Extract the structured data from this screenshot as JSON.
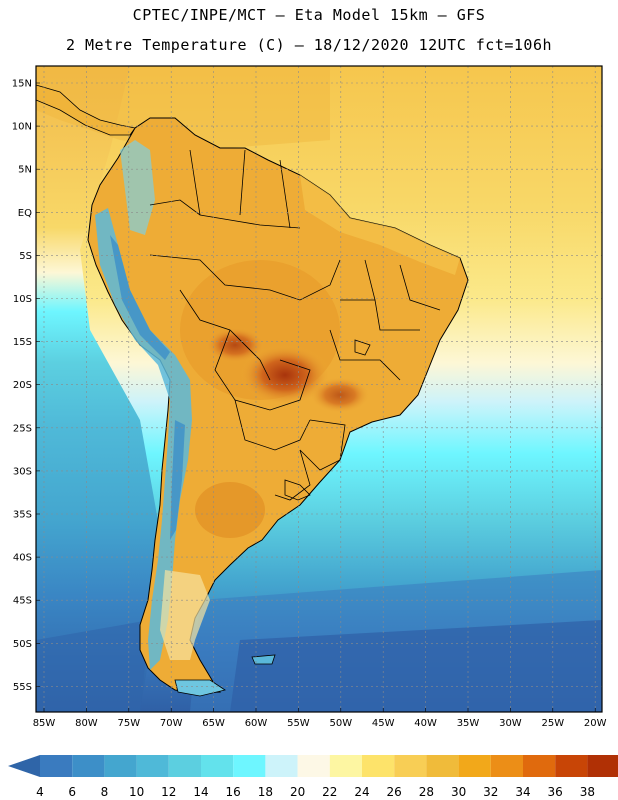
{
  "title_line1": "CPTEC/INPE/MCT –  Eta Model 15km – GFS",
  "title_line2": "2 Metre Temperature (C) – 18/12/2020 12UTC fct=106h",
  "lat_labels": [
    "15N",
    "10N",
    "5N",
    "EQ",
    "5S",
    "10S",
    "15S",
    "20S",
    "25S",
    "30S",
    "35S",
    "40S",
    "45S",
    "50S",
    "55S"
  ],
  "lon_labels": [
    "85W",
    "80W",
    "75W",
    "70W",
    "65W",
    "60W",
    "55W",
    "50W",
    "45W",
    "40W",
    "35W",
    "30W",
    "25W",
    "20W"
  ],
  "colorbar": {
    "labels": [
      "4",
      "6",
      "8",
      "10",
      "12",
      "14",
      "16",
      "18",
      "20",
      "22",
      "24",
      "26",
      "28",
      "30",
      "32",
      "34",
      "36",
      "38"
    ],
    "colors": [
      "#3a7bbf",
      "#3d8fc8",
      "#44a6cf",
      "#4fb9d8",
      "#5ccfe0",
      "#63e2ec",
      "#6ef6ff",
      "#cdf3fa",
      "#fdf8e6",
      "#fdf6a2",
      "#fde36a",
      "#f8ce55",
      "#f0bb3a",
      "#f2a81a",
      "#ec8e17",
      "#e06a0d",
      "#c84506",
      "#b03005"
    ],
    "low_color": "#2f65a8",
    "high_color": "#a5290a"
  },
  "colors": {
    "ocean_north": "#f8cf5c",
    "ocean_south_deep": "#2f66ad",
    "land": "#eeac36",
    "land_hot": "#c25418",
    "andes_cold": "#5ab8da",
    "coast_line": "#000000",
    "grid": "#8a8a8a"
  }
}
